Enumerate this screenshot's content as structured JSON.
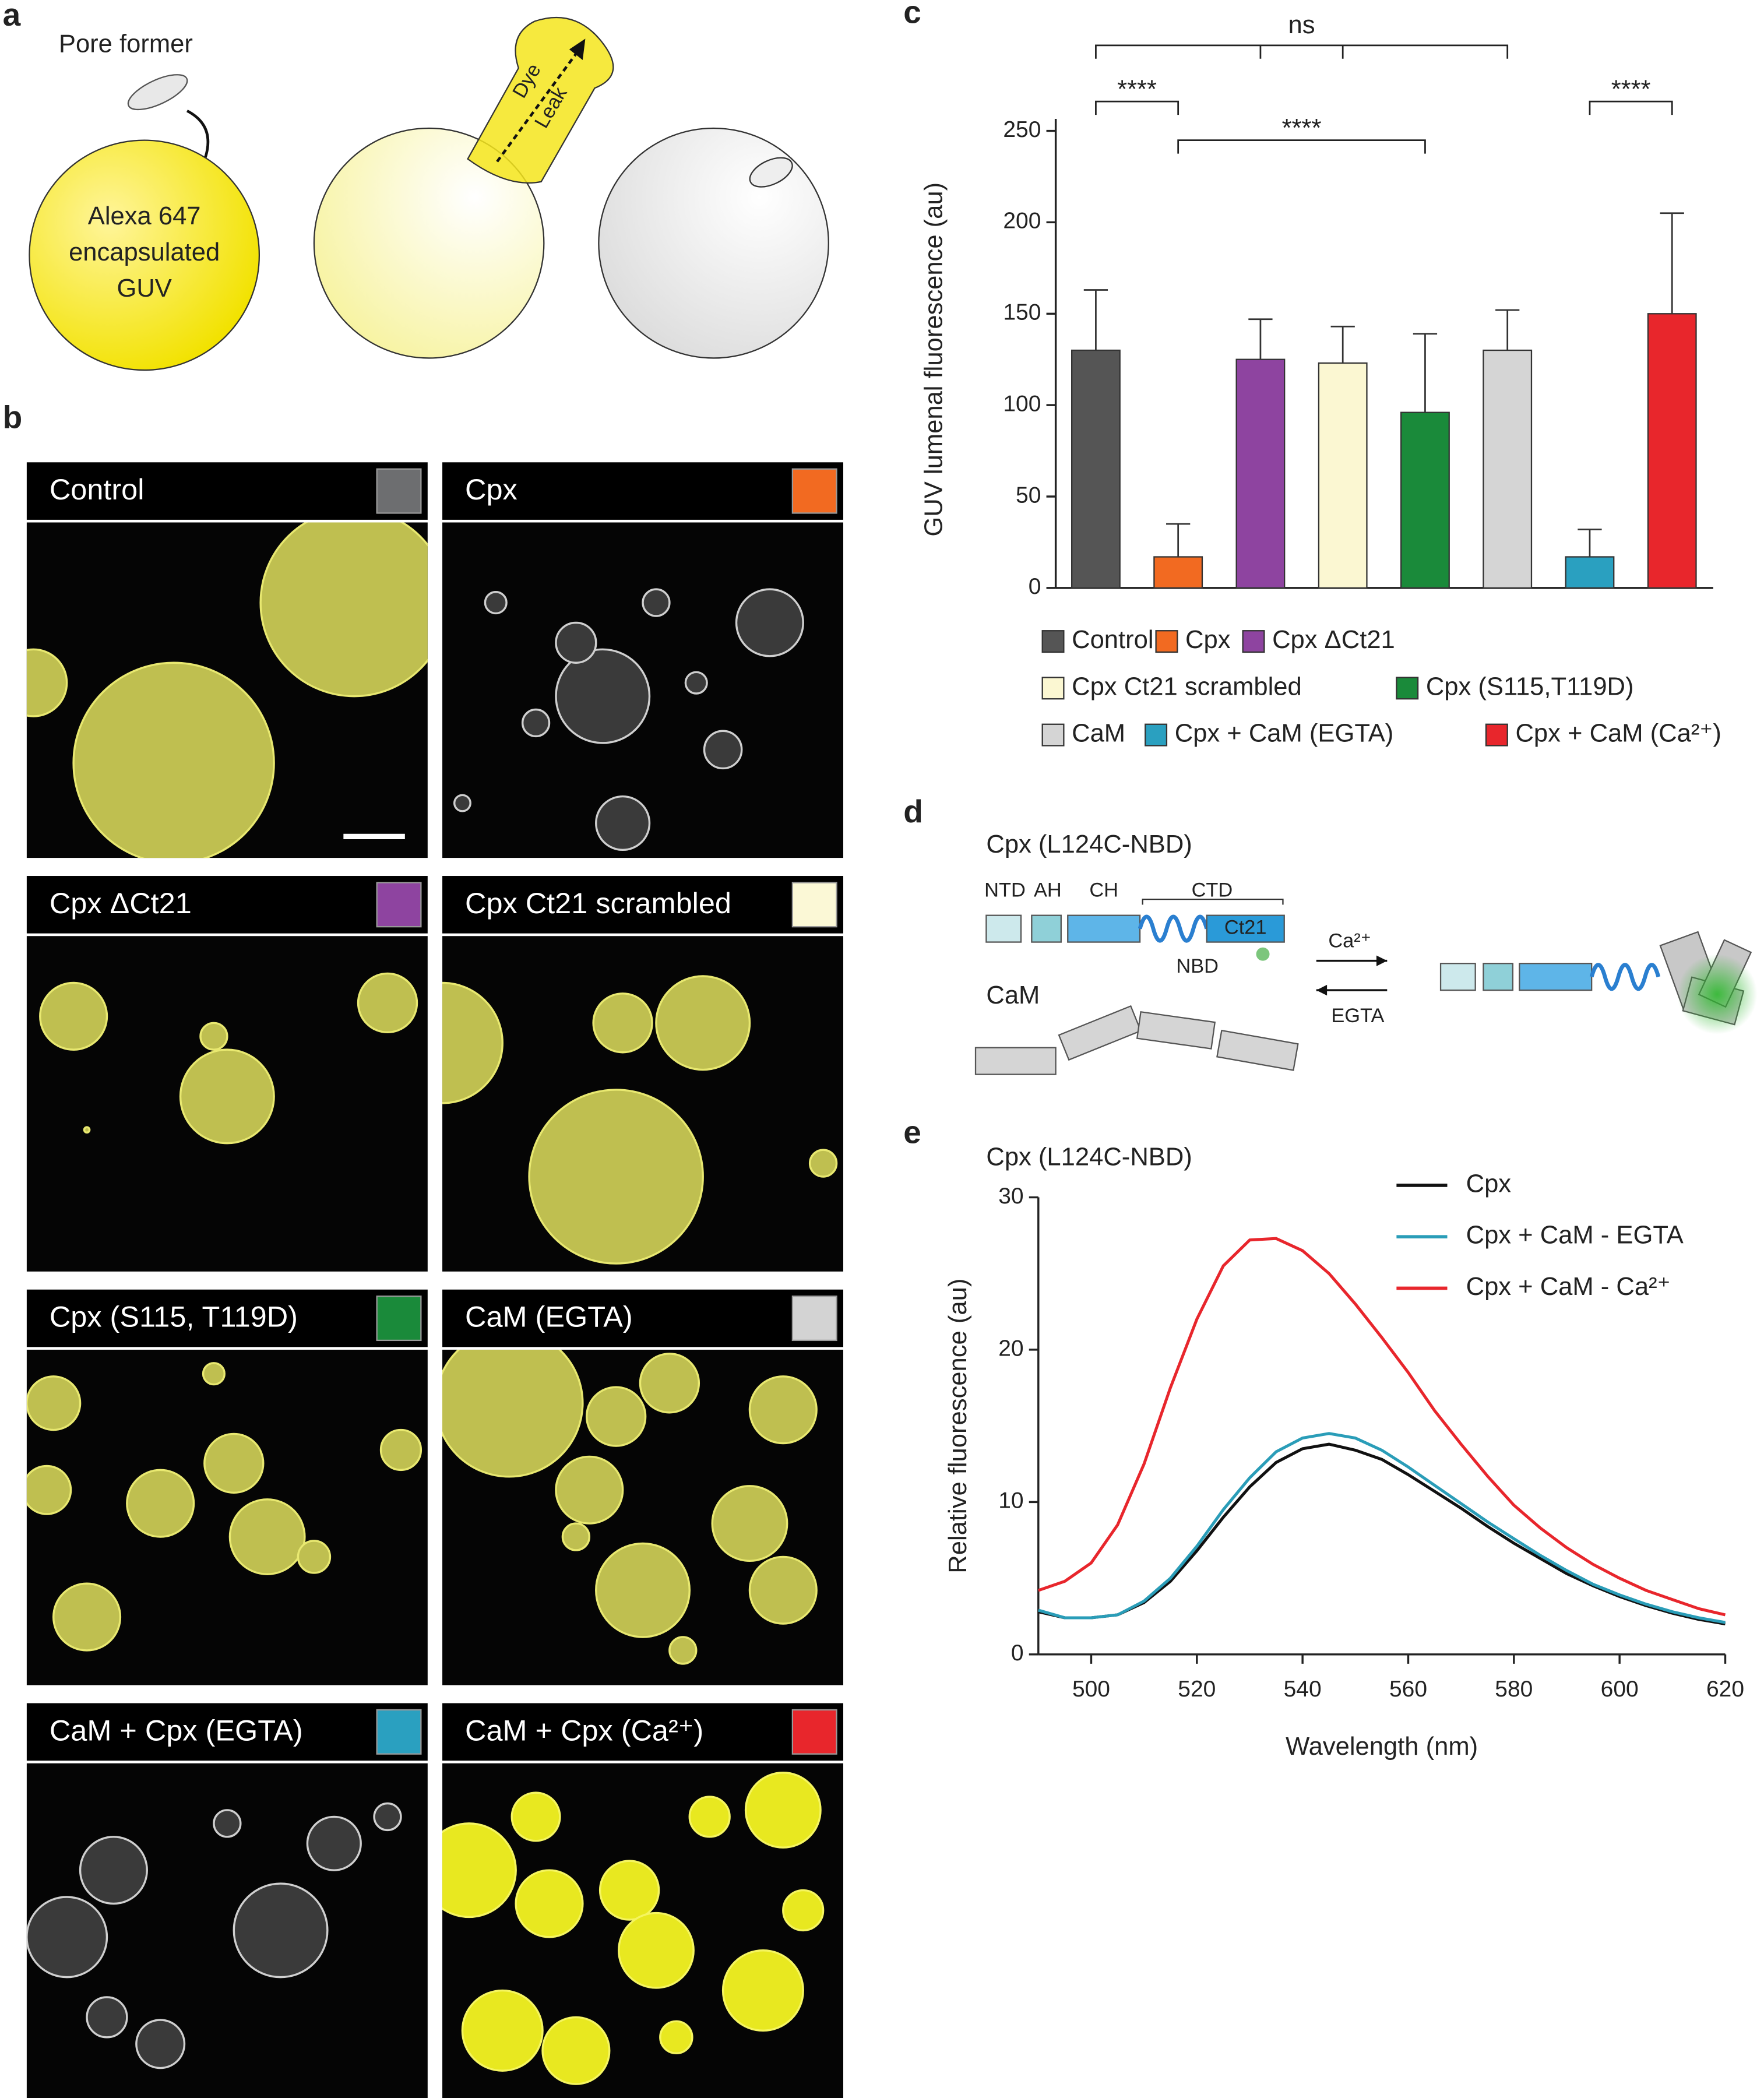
{
  "panels": {
    "a": {
      "label": "a",
      "pore_former": "Pore former",
      "guv_lines": [
        "Alexa 647",
        "encapsulated",
        "GUV"
      ],
      "leak_lines": [
        "Dye",
        "Leak"
      ]
    },
    "b": {
      "label": "b",
      "images": [
        {
          "title": "Control",
          "color": "#6d6e70"
        },
        {
          "title": "Cpx",
          "color": "#f26a21"
        },
        {
          "title": "Cpx ΔCt21",
          "color": "#8e44a0"
        },
        {
          "title": "Cpx Ct21 scrambled",
          "color": "#fbf8d6"
        },
        {
          "title": "Cpx (S115, T119D)",
          "color": "#1a8a3a"
        },
        {
          "title": "CaM (EGTA)",
          "color": "#d3d3d3"
        },
        {
          "title": "CaM + Cpx (EGTA)",
          "color": "#2aa0c0"
        },
        {
          "title": "CaM + Cpx (Ca²⁺)",
          "color": "#e8262c"
        }
      ]
    },
    "c": {
      "label": "c"
    },
    "d": {
      "label": "d",
      "title": "Cpx (L124C-NBD)",
      "domains": [
        "NTD",
        "AH",
        "CH",
        "CTD"
      ],
      "ct21": "Ct21",
      "nbd": "NBD",
      "cam": "CaM",
      "forward": "Ca²⁺",
      "reverse": "EGTA"
    },
    "e": {
      "label": "e"
    }
  },
  "chart_data": [
    {
      "type": "bar",
      "ylabel": "GUV lumenal fluorescence (au)",
      "categories": [
        "Control",
        "Cpx",
        "Cpx ΔCt21",
        "Cpx Ct21 scrambled",
        "Cpx (S115,T119D)",
        "CaM",
        "Cpx + CaM (EGTA)",
        "Cpx + CaM (Ca²⁺)"
      ],
      "values": [
        130,
        17,
        125,
        123,
        96,
        130,
        17,
        150
      ],
      "errors": [
        33,
        18,
        22,
        20,
        43,
        22,
        15,
        55
      ],
      "colors": [
        "#555555",
        "#f26a21",
        "#8e44a0",
        "#fbf7d2",
        "#1a8a3a",
        "#d5d5d5",
        "#2aa0c0",
        "#e8262c"
      ],
      "ylim": [
        0,
        250
      ],
      "yticks": [
        0,
        50,
        100,
        150,
        200,
        250
      ],
      "annotations": [
        "****",
        "****",
        "****",
        "ns"
      ]
    },
    {
      "type": "line",
      "title": "Cpx (L124C-NBD)",
      "xlabel": "Wavelength (nm)",
      "ylabel": "Relative  fluorescence (au)",
      "x": [
        490,
        495,
        500,
        505,
        510,
        515,
        520,
        525,
        530,
        535,
        540,
        545,
        550,
        555,
        560,
        565,
        570,
        575,
        580,
        585,
        590,
        595,
        600,
        605,
        610,
        615,
        620
      ],
      "series": [
        {
          "name": "Cpx",
          "color": "#111111",
          "values": [
            2.8,
            2.4,
            2.4,
            2.6,
            3.4,
            4.8,
            6.8,
            9.0,
            11.0,
            12.6,
            13.5,
            13.8,
            13.4,
            12.8,
            11.8,
            10.7,
            9.6,
            8.4,
            7.3,
            6.3,
            5.3,
            4.5,
            3.8,
            3.2,
            2.7,
            2.3,
            2.0
          ]
        },
        {
          "name": "Cpx + CaM - EGTA",
          "color": "#2a9db8",
          "values": [
            2.9,
            2.4,
            2.4,
            2.6,
            3.5,
            5.0,
            7.1,
            9.5,
            11.6,
            13.3,
            14.2,
            14.5,
            14.2,
            13.4,
            12.3,
            11.1,
            9.9,
            8.7,
            7.6,
            6.5,
            5.5,
            4.6,
            3.9,
            3.3,
            2.8,
            2.4,
            2.1
          ]
        },
        {
          "name": "Cpx + CaM - Ca²⁺",
          "color": "#e8262c",
          "values": [
            4.2,
            4.8,
            6.0,
            8.5,
            12.5,
            17.5,
            22.0,
            25.5,
            27.2,
            27.3,
            26.5,
            25.0,
            23.0,
            20.8,
            18.5,
            16.0,
            13.8,
            11.7,
            9.8,
            8.3,
            7.0,
            5.9,
            5.0,
            4.2,
            3.6,
            3.0,
            2.6
          ]
        }
      ],
      "xlim": [
        490,
        620
      ],
      "xticks": [
        500,
        520,
        540,
        560,
        580,
        600,
        620
      ],
      "ylim": [
        0,
        30
      ],
      "yticks": [
        0,
        10,
        20,
        30
      ]
    }
  ]
}
